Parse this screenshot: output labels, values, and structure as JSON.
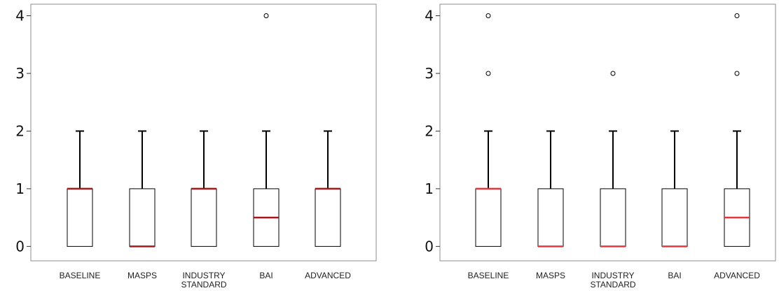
{
  "chart_data": [
    {
      "type": "box",
      "categories": [
        "BASELINE",
        "MASPS",
        "INDUSTRY\nSTANDARD",
        "BAI",
        "ADVANCED"
      ],
      "ylim": [
        -0.25,
        4.2
      ],
      "yticks": [
        0,
        1,
        2,
        3,
        4
      ],
      "grid": false,
      "median_color": "#a3191e",
      "boxes": [
        {
          "q1": 0,
          "median": 1,
          "q3": 1,
          "whisker_low": 0,
          "whisker_high": 2,
          "outliers": []
        },
        {
          "q1": 0,
          "median": 0,
          "q3": 1,
          "whisker_low": 0,
          "whisker_high": 2,
          "outliers": []
        },
        {
          "q1": 0,
          "median": 1,
          "q3": 1,
          "whisker_low": 0,
          "whisker_high": 2,
          "outliers": []
        },
        {
          "q1": 0,
          "median": 0.5,
          "q3": 1,
          "whisker_low": 0,
          "whisker_high": 2,
          "outliers": [
            4
          ]
        },
        {
          "q1": 0,
          "median": 1,
          "q3": 1,
          "whisker_low": 0,
          "whisker_high": 2,
          "outliers": []
        }
      ]
    },
    {
      "type": "box",
      "categories": [
        "BASELINE",
        "MASPS",
        "INDUSTRY\nSTANDARD",
        "BAI",
        "ADVANCED"
      ],
      "ylim": [
        -0.25,
        4.2
      ],
      "yticks": [
        0,
        1,
        2,
        3,
        4
      ],
      "grid": false,
      "median_color": "#e0393e",
      "boxes": [
        {
          "q1": 0,
          "median": 1,
          "q3": 1,
          "whisker_low": 0,
          "whisker_high": 2,
          "outliers": [
            3,
            4
          ]
        },
        {
          "q1": 0,
          "median": 0,
          "q3": 1,
          "whisker_low": 0,
          "whisker_high": 2,
          "outliers": []
        },
        {
          "q1": 0,
          "median": 0,
          "q3": 1,
          "whisker_low": 0,
          "whisker_high": 2,
          "outliers": [
            3
          ]
        },
        {
          "q1": 0,
          "median": 0,
          "q3": 1,
          "whisker_low": 0,
          "whisker_high": 2,
          "outliers": []
        },
        {
          "q1": 0,
          "median": 0.5,
          "q3": 1,
          "whisker_low": 0,
          "whisker_high": 2,
          "outliers": [
            3,
            4
          ]
        }
      ]
    }
  ]
}
